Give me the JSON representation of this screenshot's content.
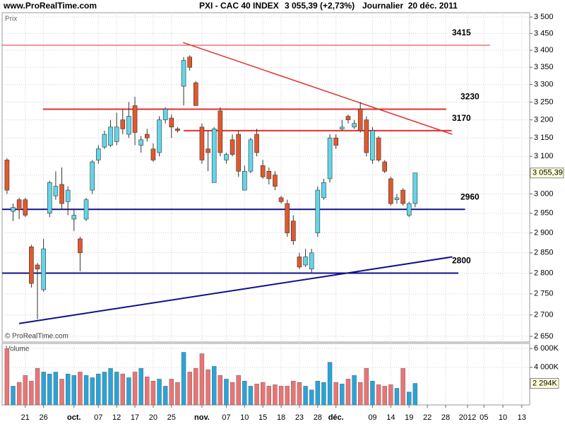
{
  "chart_data": {
    "type": "candlestick",
    "site": "www.ProRealTime.com",
    "title": "PXI - CAC 40 INDEX",
    "quote": "3 055,39 (+2,73%)",
    "period": "Journalier  20 déc. 2011",
    "price_label": "Prix",
    "copyright": "© ProRealTime.com",
    "log": true,
    "grid": true,
    "up_color": "#62d6e8",
    "down_color": "#e2582c",
    "ylim": [
      2637,
      3513
    ],
    "yticks": [
      {
        "value": 2650,
        "label": "2 650"
      },
      {
        "value": 2700,
        "label": "2 700"
      },
      {
        "value": 2750,
        "label": "2 750"
      },
      {
        "value": 2800,
        "label": "2 800"
      },
      {
        "value": 2850,
        "label": "2 850"
      },
      {
        "value": 2900,
        "label": "2 900"
      },
      {
        "value": 2950,
        "label": "2 950"
      },
      {
        "value": 3000,
        "label": "3 000"
      },
      {
        "value": 3050,
        "label": "3 050"
      },
      {
        "value": 3100,
        "label": "3 100"
      },
      {
        "value": 3150,
        "label": "3 150"
      },
      {
        "value": 3200,
        "label": "3 200"
      },
      {
        "value": 3250,
        "label": "3 250"
      },
      {
        "value": 3300,
        "label": "3 300"
      },
      {
        "value": 3350,
        "label": "3 350"
      },
      {
        "value": 3400,
        "label": "3 400"
      },
      {
        "value": 3450,
        "label": "3 450"
      },
      {
        "value": 3500,
        "label": "3 500"
      }
    ],
    "xlim": [
      -0.8,
      85.8
    ],
    "xticks": [
      {
        "value": 3,
        "label": "21"
      },
      {
        "value": 6,
        "label": "26"
      },
      {
        "value": 11,
        "label": "oct."
      },
      {
        "value": 15,
        "label": "07"
      },
      {
        "value": 18,
        "label": "12"
      },
      {
        "value": 21,
        "label": "17"
      },
      {
        "value": 24,
        "label": "20"
      },
      {
        "value": 27,
        "label": "25"
      },
      {
        "value": 32,
        "label": "nov."
      },
      {
        "value": 36,
        "label": "07"
      },
      {
        "value": 39,
        "label": "10"
      },
      {
        "value": 42,
        "label": "15"
      },
      {
        "value": 45,
        "label": "18"
      },
      {
        "value": 48,
        "label": "23"
      },
      {
        "value": 51,
        "label": "28"
      },
      {
        "value": 54,
        "label": "déc."
      },
      {
        "value": 60,
        "label": "09"
      },
      {
        "value": 63,
        "label": "14"
      },
      {
        "value": 66,
        "label": "19"
      },
      {
        "value": 69,
        "label": "22"
      },
      {
        "value": 72,
        "label": "28"
      },
      {
        "value": 75.6,
        "label": "2012"
      },
      {
        "value": 78.3,
        "label": "05"
      },
      {
        "value": 81.4,
        "label": "10"
      },
      {
        "value": 84.5,
        "label": "13"
      }
    ],
    "last_value_label": "3 055,39",
    "candles": [
      {
        "o": 3090,
        "h": 3095,
        "l": 3000,
        "c": 3010,
        "v": 6000
      },
      {
        "o": 2955,
        "h": 2975,
        "l": 2930,
        "c": 2965,
        "v": 2000
      },
      {
        "o": 2985,
        "h": 2990,
        "l": 2935,
        "c": 2960,
        "v": 2400
      },
      {
        "o": 2985,
        "h": 2990,
        "l": 2940,
        "c": 2945,
        "v": 3150
      },
      {
        "o": 2865,
        "h": 2870,
        "l": 2765,
        "c": 2775,
        "v": 2540
      },
      {
        "o": 2820,
        "h": 2825,
        "l": 2690,
        "c": 2810,
        "v": 3900
      },
      {
        "o": 2760,
        "h": 2885,
        "l": 2755,
        "c": 2860,
        "v": 3500
      },
      {
        "o": 2950,
        "h": 3035,
        "l": 2940,
        "c": 3030,
        "v": 3300
      },
      {
        "o": 2995,
        "h": 3060,
        "l": 2985,
        "c": 3020,
        "v": 3500
      },
      {
        "o": 3025,
        "h": 3070,
        "l": 2960,
        "c": 2975,
        "v": 2750
      },
      {
        "o": 2980,
        "h": 3020,
        "l": 2945,
        "c": 3010,
        "v": 3300
      },
      {
        "o": 2935,
        "h": 2960,
        "l": 2905,
        "c": 2945,
        "v": 3150
      },
      {
        "o": 2885,
        "h": 2890,
        "l": 2805,
        "c": 2850,
        "v": 3500
      },
      {
        "o": 2935,
        "h": 2990,
        "l": 2930,
        "c": 2985,
        "v": 3150
      },
      {
        "o": 3010,
        "h": 3090,
        "l": 3000,
        "c": 3085,
        "v": 2900
      },
      {
        "o": 3090,
        "h": 3130,
        "l": 3080,
        "c": 3120,
        "v": 3300
      },
      {
        "o": 3125,
        "h": 3170,
        "l": 3120,
        "c": 3160,
        "v": 3500
      },
      {
        "o": 3130,
        "h": 3200,
        "l": 3125,
        "c": 3180,
        "v": 3900
      },
      {
        "o": 3140,
        "h": 3220,
        "l": 3130,
        "c": 3180,
        "v": 3500
      },
      {
        "o": 3200,
        "h": 3230,
        "l": 3160,
        "c": 3175,
        "v": 3300
      },
      {
        "o": 3160,
        "h": 3250,
        "l": 3150,
        "c": 3210,
        "v": 2900
      },
      {
        "o": 3240,
        "h": 3265,
        "l": 3130,
        "c": 3165,
        "v": 3500
      },
      {
        "o": 3130,
        "h": 3155,
        "l": 3110,
        "c": 3145,
        "v": 3900
      },
      {
        "o": 3160,
        "h": 3175,
        "l": 3140,
        "c": 3150,
        "v": 3000
      },
      {
        "o": 3120,
        "h": 3135,
        "l": 3085,
        "c": 3090,
        "v": 2540
      },
      {
        "o": 3110,
        "h": 3210,
        "l": 3100,
        "c": 3200,
        "v": 2750
      },
      {
        "o": 3200,
        "h": 3235,
        "l": 3190,
        "c": 3230,
        "v": 2000
      },
      {
        "o": 3205,
        "h": 3215,
        "l": 3150,
        "c": 3180,
        "v": 2750
      },
      {
        "o": 3175,
        "h": 3180,
        "l": 3165,
        "c": 3170,
        "v": 2400
      },
      {
        "o": 3295,
        "h": 3380,
        "l": 3240,
        "c": 3370,
        "v": 5600
      },
      {
        "o": 3380,
        "h": 3385,
        "l": 3340,
        "c": 3350,
        "v": 3500
      },
      {
        "o": 3305,
        "h": 3310,
        "l": 3240,
        "c": 3240,
        "v": 3900
      },
      {
        "o": 3180,
        "h": 3190,
        "l": 3080,
        "c": 3090,
        "v": 5450
      },
      {
        "o": 3120,
        "h": 3170,
        "l": 3060,
        "c": 3110,
        "v": 3750
      },
      {
        "o": 3030,
        "h": 3180,
        "l": 3030,
        "c": 3175,
        "v": 4100
      },
      {
        "o": 3225,
        "h": 3235,
        "l": 3100,
        "c": 3110,
        "v": 3150
      },
      {
        "o": 3090,
        "h": 3110,
        "l": 3080,
        "c": 3105,
        "v": 2750
      },
      {
        "o": 3145,
        "h": 3160,
        "l": 3100,
        "c": 3105,
        "v": 2400
      },
      {
        "o": 3160,
        "h": 3170,
        "l": 3045,
        "c": 3060,
        "v": 3150
      },
      {
        "o": 3010,
        "h": 3075,
        "l": 3010,
        "c": 3060,
        "v": 2540
      },
      {
        "o": 3060,
        "h": 3150,
        "l": 3055,
        "c": 3145,
        "v": 2000
      },
      {
        "o": 3160,
        "h": 3175,
        "l": 3100,
        "c": 3110,
        "v": 2230
      },
      {
        "o": 3075,
        "h": 3090,
        "l": 3040,
        "c": 3045,
        "v": 2400
      },
      {
        "o": 3060,
        "h": 3070,
        "l": 3025,
        "c": 3040,
        "v": 2000
      },
      {
        "o": 3050,
        "h": 3060,
        "l": 3010,
        "c": 3020,
        "v": 2150
      },
      {
        "o": 2990,
        "h": 2995,
        "l": 2975,
        "c": 2980,
        "v": 2000
      },
      {
        "o": 2975,
        "h": 2985,
        "l": 2890,
        "c": 2900,
        "v": 2000
      },
      {
        "o": 2930,
        "h": 2945,
        "l": 2870,
        "c": 2880,
        "v": 2540
      },
      {
        "o": 2840,
        "h": 2850,
        "l": 2810,
        "c": 2815,
        "v": 2400
      },
      {
        "o": 2820,
        "h": 2860,
        "l": 2815,
        "c": 2840,
        "v": 2000
      },
      {
        "o": 2810,
        "h": 2860,
        "l": 2800,
        "c": 2850,
        "v": 1600
      },
      {
        "o": 2900,
        "h": 3020,
        "l": 2890,
        "c": 3010,
        "v": 2540
      },
      {
        "o": 2990,
        "h": 3040,
        "l": 2985,
        "c": 3030,
        "v": 2400
      },
      {
        "o": 3040,
        "h": 3160,
        "l": 3030,
        "c": 3150,
        "v": 4540
      },
      {
        "o": 3150,
        "h": 3160,
        "l": 3120,
        "c": 3130,
        "v": 2400
      },
      {
        "o": 3175,
        "h": 3200,
        "l": 3170,
        "c": 3180,
        "v": 2230
      },
      {
        "o": 3210,
        "h": 3215,
        "l": 3190,
        "c": 3200,
        "v": 2750
      },
      {
        "o": 3180,
        "h": 3200,
        "l": 3175,
        "c": 3190,
        "v": 3150
      },
      {
        "o": 3230,
        "h": 3250,
        "l": 3165,
        "c": 3170,
        "v": 2400
      },
      {
        "o": 3200,
        "h": 3210,
        "l": 3100,
        "c": 3110,
        "v": 3900
      },
      {
        "o": 3090,
        "h": 3180,
        "l": 3080,
        "c": 3170,
        "v": 2540
      },
      {
        "o": 3150,
        "h": 3155,
        "l": 3085,
        "c": 3090,
        "v": 2150
      },
      {
        "o": 3085,
        "h": 3090,
        "l": 3055,
        "c": 3060,
        "v": 2000
      },
      {
        "o": 3040,
        "h": 3045,
        "l": 2970,
        "c": 2975,
        "v": 2150
      },
      {
        "o": 2985,
        "h": 3000,
        "l": 2975,
        "c": 2990,
        "v": 1770
      },
      {
        "o": 3010,
        "h": 3015,
        "l": 2970,
        "c": 2975,
        "v": 3900
      },
      {
        "o": 2945,
        "h": 2980,
        "l": 2940,
        "c": 2975,
        "v": 1380
      },
      {
        "o": 2975,
        "h": 3056,
        "l": 2965,
        "c": 3055.39,
        "v": 2294
      }
    ],
    "levels": [
      {
        "value": 3415,
        "color": "#e03030",
        "x": [
          -0.8,
          79.3
        ]
      },
      {
        "value": 3230,
        "color": "#e03030",
        "x": [
          5.9,
          72.1
        ]
      },
      {
        "value": 3170,
        "color": "#e03030",
        "x": [
          29,
          73
        ]
      },
      {
        "value": 2960,
        "color": "#10108a",
        "x": [
          -0.8,
          75.2
        ]
      },
      {
        "value": 2800,
        "color": "#10108a",
        "x": [
          -0.8,
          74.1
        ]
      }
    ],
    "trendlines": [
      {
        "color": "#e03030",
        "x": [
          28.9,
          73.1
        ],
        "y": [
          3423,
          3160
        ]
      },
      {
        "color": "#10108a",
        "x": [
          2,
          73.1
        ],
        "y": [
          2680,
          2840
        ]
      }
    ],
    "volume": {
      "label": "Volume",
      "up_color": "#2aa3d8",
      "down_color": "#ea7474",
      "ylim": [
        0,
        6540
      ],
      "yticks": [
        {
          "value": 4000,
          "label": "4 000K"
        },
        {
          "value": 6000,
          "label": "6 000K"
        }
      ],
      "last_value_label": "2 294K"
    }
  }
}
